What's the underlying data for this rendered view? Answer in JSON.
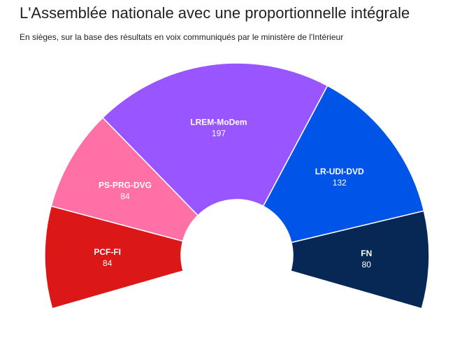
{
  "title": "L'Assemblée nationale avec une proportionnelle intégrale",
  "subtitle": "En sièges, sur la base des résultats en voix communiqués par le ministère de l'Intérieur",
  "chart_data": {
    "type": "pie",
    "variant": "hemicycle",
    "categories": [
      "PCF-FI",
      "PS-PRG-DVG",
      "LREM-MoDem",
      "LR-UDI-DVD",
      "FN"
    ],
    "values": [
      84,
      84,
      197,
      132,
      80
    ],
    "colors": [
      "#db1717",
      "#ff70a6",
      "#9955ff",
      "#0055e8",
      "#072855"
    ],
    "value_labels": [
      "84",
      "84",
      "197",
      "132",
      "80"
    ]
  }
}
